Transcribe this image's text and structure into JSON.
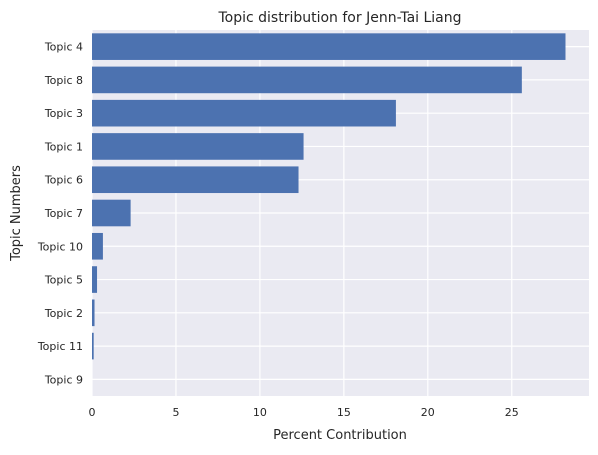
{
  "chart_data": {
    "type": "bar",
    "orientation": "horizontal",
    "title": "Topic distribution for Jenn-Tai Liang",
    "xlabel": "Percent Contribution",
    "ylabel": "Topic Numbers",
    "categories": [
      "Topic 4",
      "Topic 8",
      "Topic 3",
      "Topic 1",
      "Topic 6",
      "Topic 7",
      "Topic 10",
      "Topic 5",
      "Topic 2",
      "Topic 11",
      "Topic 9"
    ],
    "values": [
      28.2,
      25.6,
      18.1,
      12.6,
      12.3,
      2.3,
      0.65,
      0.3,
      0.15,
      0.1,
      0.0
    ],
    "xlim": [
      0,
      29.6
    ],
    "xticks": [
      0,
      5,
      10,
      15,
      20,
      25
    ],
    "grid": true,
    "colors": {
      "bar": "#4c72b0",
      "background": "#eaeaf2",
      "grid": "#ffffff"
    }
  }
}
